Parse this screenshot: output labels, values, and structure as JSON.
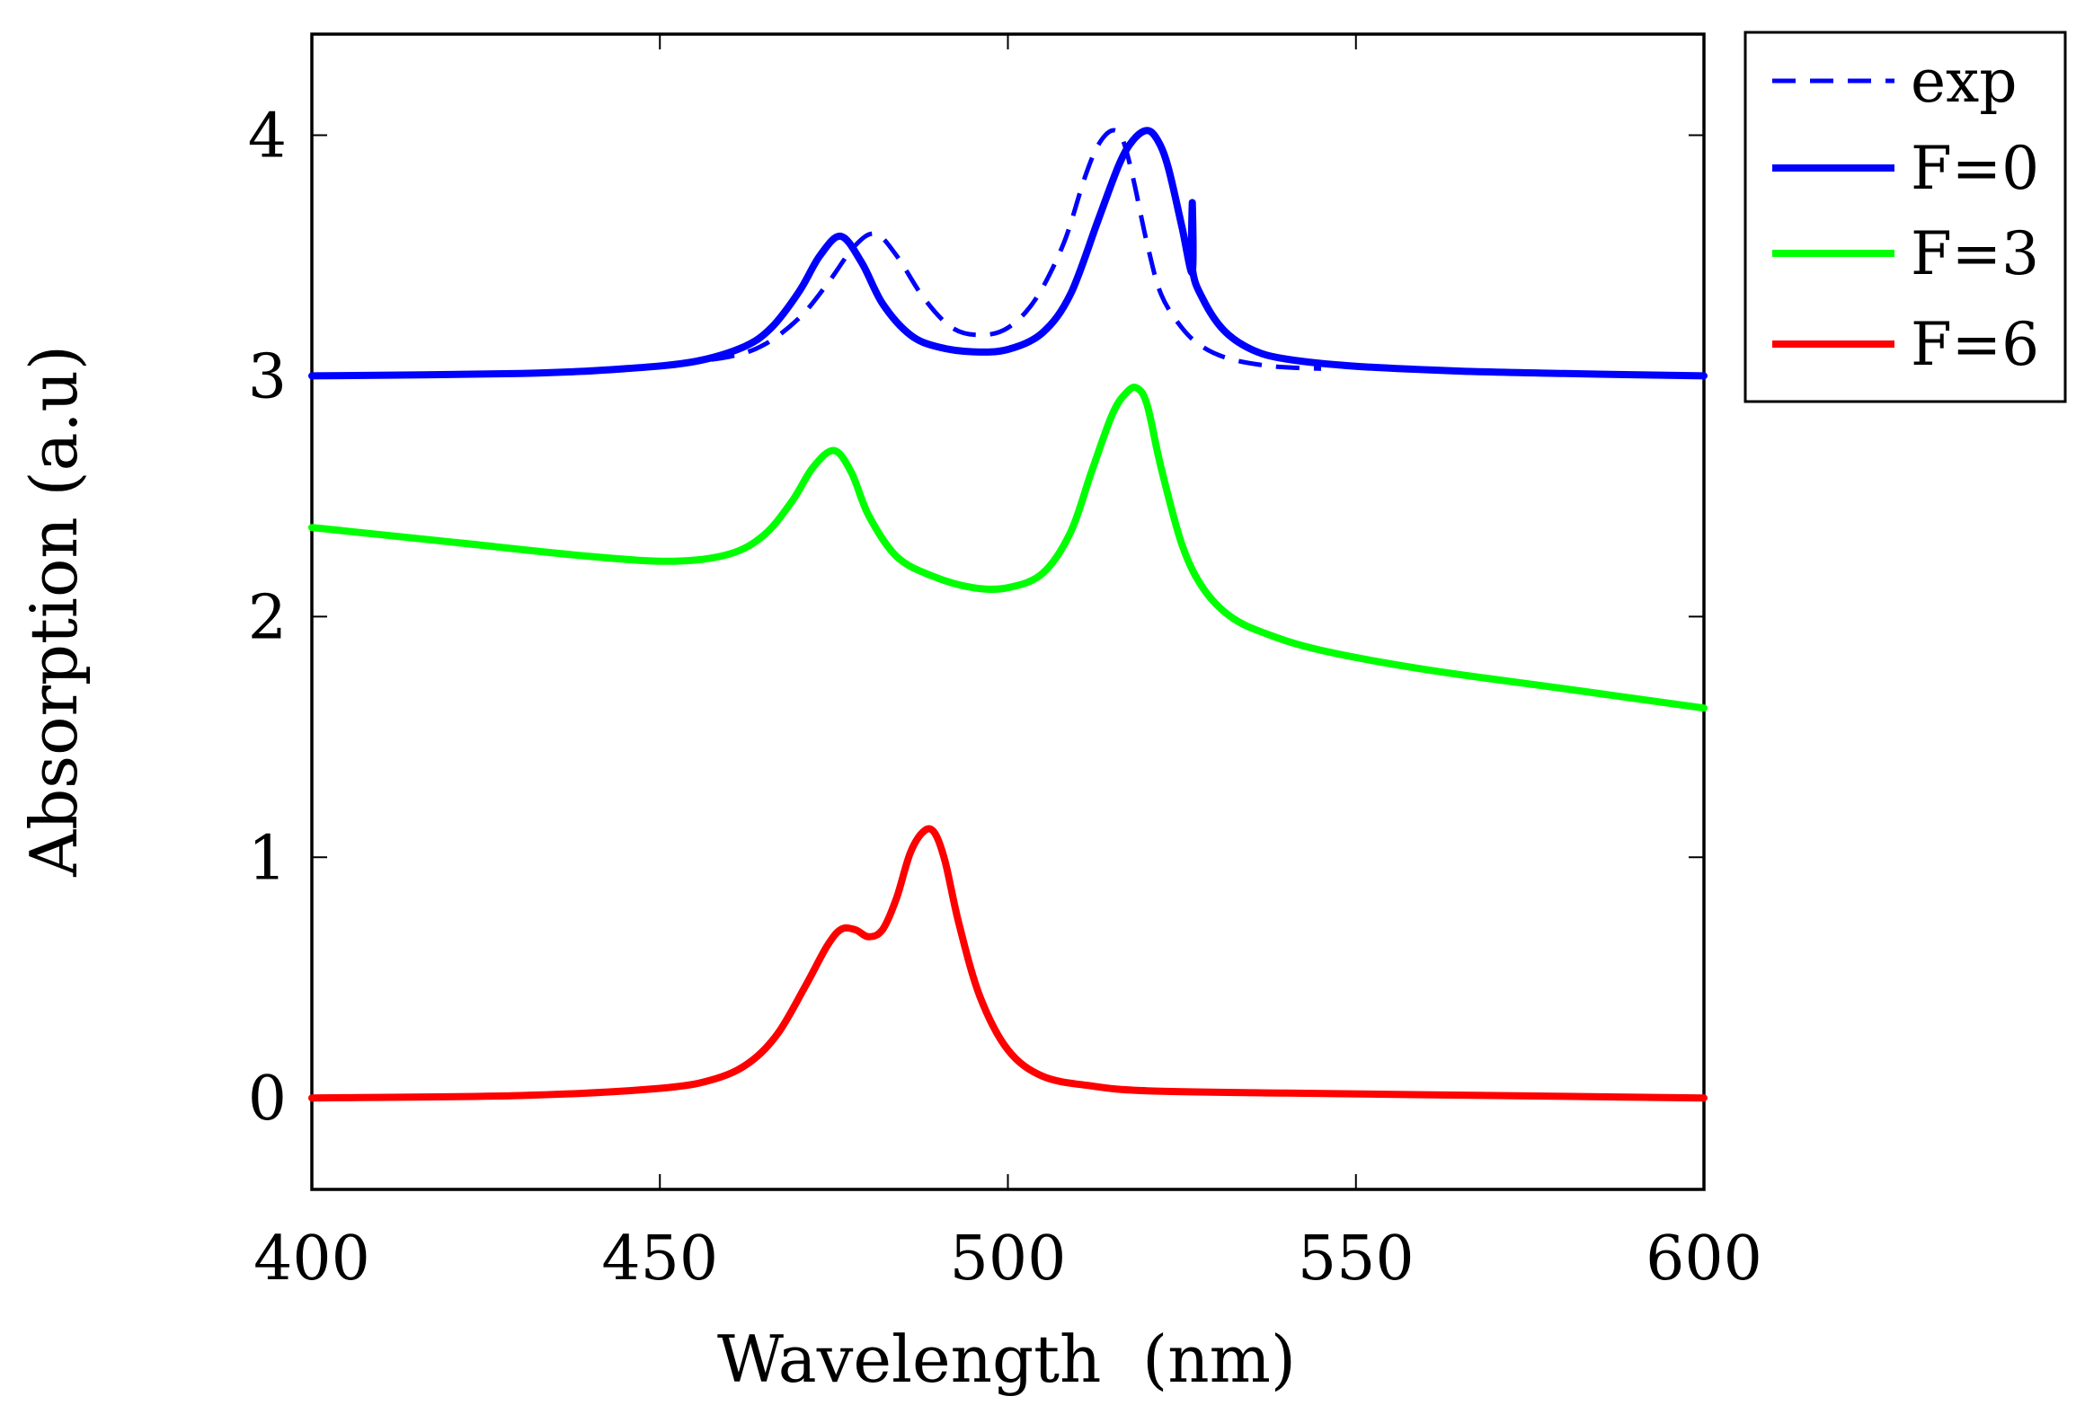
{
  "chart_data": {
    "type": "line",
    "title": "",
    "xlabel": "Wavelength  (nm)",
    "ylabel": "Absorption (a.u)",
    "xlim": [
      400,
      600
    ],
    "ylim": [
      -0.38,
      4.42
    ],
    "xticks": [
      400,
      450,
      500,
      550,
      600
    ],
    "xtick_labels": [
      "400",
      "450",
      "500",
      "550",
      "600"
    ],
    "yticks": [
      0,
      1,
      2,
      3,
      4
    ],
    "ytick_labels": [
      "0",
      "1",
      "2",
      "3",
      "4"
    ],
    "grid": false,
    "legend_position": "outside top-right",
    "series": [
      {
        "name": "exp",
        "color": "#0000ff",
        "dash": "dashed",
        "x": [
          452,
          460,
          465,
          470,
          474,
          478,
          481,
          484,
          488,
          492,
          496,
          500,
          504,
          508,
          511,
          513,
          515,
          516.5,
          518,
          520,
          522,
          525,
          528,
          532,
          538,
          545
        ],
        "y": [
          3.05,
          3.08,
          3.13,
          3.24,
          3.38,
          3.54,
          3.59,
          3.5,
          3.32,
          3.2,
          3.17,
          3.2,
          3.32,
          3.55,
          3.82,
          3.96,
          4.02,
          3.98,
          3.82,
          3.55,
          3.34,
          3.2,
          3.12,
          3.07,
          3.04,
          3.03
        ]
      },
      {
        "name": "F=0",
        "color": "#0000ff",
        "dash": "solid",
        "x": [
          400,
          430,
          445,
          455,
          462,
          466,
          470,
          473,
          476,
          479,
          482,
          486,
          490,
          495,
          500,
          505,
          509,
          513,
          516,
          518,
          520,
          521.5,
          523,
          525,
          526.5,
          526.5,
          526.5,
          528,
          531,
          535,
          540,
          550,
          565,
          580,
          600
        ],
        "y": [
          3.0,
          3.01,
          3.03,
          3.06,
          3.12,
          3.2,
          3.35,
          3.5,
          3.58,
          3.47,
          3.3,
          3.17,
          3.12,
          3.1,
          3.11,
          3.18,
          3.34,
          3.65,
          3.88,
          3.98,
          4.02,
          3.98,
          3.87,
          3.62,
          3.43,
          3.72,
          3.45,
          3.32,
          3.19,
          3.11,
          3.07,
          3.04,
          3.02,
          3.01,
          3.0
        ]
      },
      {
        "name": "F=3",
        "color": "#00ff00",
        "dash": "solid",
        "x": [
          400,
          420,
          440,
          452,
          460,
          465,
          469,
          472,
          475,
          477.5,
          480,
          484,
          489,
          495,
          500,
          505,
          509,
          512,
          515,
          517,
          518.5,
          520,
          522,
          525,
          528,
          532,
          537,
          545,
          560,
          580,
          600
        ],
        "y": [
          2.37,
          2.31,
          2.25,
          2.23,
          2.26,
          2.34,
          2.48,
          2.62,
          2.69,
          2.6,
          2.42,
          2.25,
          2.17,
          2.12,
          2.12,
          2.18,
          2.35,
          2.6,
          2.84,
          2.93,
          2.95,
          2.88,
          2.62,
          2.3,
          2.12,
          2.0,
          1.93,
          1.86,
          1.78,
          1.7,
          1.62
        ]
      },
      {
        "name": "F=6",
        "color": "#ff0000",
        "dash": "solid",
        "x": [
          400,
          430,
          450,
          458,
          463,
          467,
          471,
          474,
          476,
          478,
          480,
          482,
          484,
          486,
          488,
          489.5,
          491,
          493,
          496,
          500,
          505,
          512,
          520,
          540,
          570,
          600
        ],
        "y": [
          0.0,
          0.01,
          0.04,
          0.08,
          0.15,
          0.27,
          0.47,
          0.63,
          0.7,
          0.7,
          0.67,
          0.7,
          0.83,
          1.02,
          1.11,
          1.1,
          0.98,
          0.72,
          0.42,
          0.2,
          0.09,
          0.05,
          0.03,
          0.02,
          0.01,
          0.0
        ]
      }
    ]
  }
}
